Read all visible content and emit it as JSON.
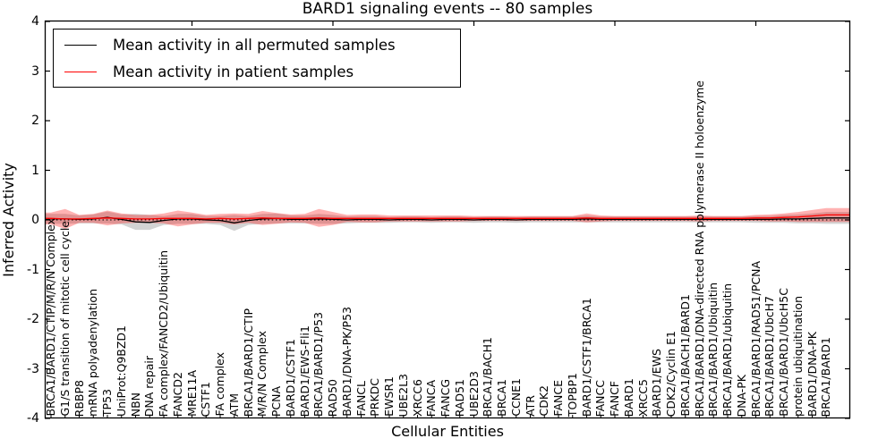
{
  "title": "BARD1 signaling events -- 80 samples",
  "axes": {
    "x_label": "Cellular Entities",
    "y_label": "Inferred Activity",
    "y_ticks": [
      "4",
      "3",
      "2",
      "1",
      "0",
      "-1",
      "-2",
      "-3",
      "-4"
    ],
    "y_tick_values": [
      4,
      3,
      2,
      1,
      0,
      -1,
      -2,
      -3,
      -4
    ]
  },
  "legend": {
    "items": [
      {
        "label": "Mean activity in all permuted samples",
        "color": "#000000"
      },
      {
        "label": "Mean activity in patient samples",
        "color": "#ff0000"
      }
    ]
  },
  "chart_data": {
    "type": "line",
    "title": "BARD1 signaling events -- 80 samples",
    "xlabel": "Cellular Entities",
    "ylabel": "Inferred Activity",
    "ylim": [
      -4,
      4
    ],
    "grid": false,
    "legend_position": "upper left",
    "zero_reference_line": {
      "y": 0,
      "style": "dotted",
      "color": "#000000"
    },
    "categories": [
      "BRCA1/BARD1/CTIP/M/R/N Complex",
      "G1/S transition of mitotic cell cycle",
      "RBBP8",
      "mRNA polyadenylation",
      "TP53",
      "UniProt:Q9BZD1",
      "NBN",
      "DNA repair",
      "FA complex/FANCD2/Ubiquitin",
      "FANCD2",
      "MRE11A",
      "CSTF1",
      "FA complex",
      "ATM",
      "BRCA1/BARD1/CTIP",
      "M/R/N Complex",
      "PCNA",
      "BARD1/CSTF1",
      "BARD1/EWS-Fli1",
      "BRCA1/BARD1/P53",
      "RAD50",
      "BARD1/DNA-PK/P53",
      "FANCL",
      "PRKDC",
      "EWSR1",
      "UBE2L3",
      "XRCC6",
      "FANCA",
      "FANCG",
      "RAD51",
      "UBE2D3",
      "BRCA1/BACH1",
      "BRCA1",
      "CCNE1",
      "ATR",
      "CDK2",
      "FANCE",
      "TOPBP1",
      "BARD1/CSTF1/BRCA1",
      "FANCC",
      "FANCF",
      "BARD1",
      "XRCC5",
      "BARD1/EWS",
      "CDK2/Cyclin E1",
      "BRCA1/BACH1/BARD1",
      "BRCA1/BARD1/DNA-directed RNA polymerase II holoenzyme",
      "BRCA1/BARD1/Ubiquitin",
      "BRCA1/BARD1/ubiquitin",
      "DNA-PK",
      "BRCA1/BARD1/RAD51/PCNA",
      "BRCA1/BARD1/UbcH7",
      "BRCA1/BARD1/UbcH5C",
      "protein ubiquitination",
      "BARD1/DNA-PK",
      "BRCA1/BARD1"
    ],
    "series": [
      {
        "name": "Mean activity in all permuted samples",
        "color": "#000000",
        "band_color": "rgba(110,110,110,0.30)",
        "values": [
          0.02,
          0.02,
          0.01,
          0.02,
          0.05,
          0.01,
          -0.04,
          -0.05,
          -0.01,
          0.02,
          0.02,
          0.0,
          -0.01,
          -0.06,
          -0.01,
          0.02,
          0.03,
          0.01,
          0.01,
          0.02,
          0.01,
          0.0,
          0.01,
          0.01,
          0.0,
          0.01,
          0.01,
          0.0,
          0.01,
          0.01,
          0.0,
          0.01,
          0.01,
          0.0,
          0.01,
          0.01,
          0.01,
          0.01,
          0.02,
          0.01,
          0.01,
          0.01,
          0.01,
          0.01,
          0.01,
          0.01,
          0.01,
          0.01,
          0.01,
          0.01,
          0.01,
          0.01,
          0.02,
          0.02,
          0.03,
          0.04
        ],
        "band_halfwidth": [
          0.1,
          0.1,
          0.08,
          0.09,
          0.12,
          0.1,
          0.16,
          0.15,
          0.09,
          0.1,
          0.1,
          0.08,
          0.09,
          0.16,
          0.09,
          0.1,
          0.1,
          0.08,
          0.08,
          0.1,
          0.09,
          0.07,
          0.07,
          0.07,
          0.06,
          0.06,
          0.06,
          0.06,
          0.06,
          0.06,
          0.06,
          0.06,
          0.06,
          0.06,
          0.06,
          0.06,
          0.06,
          0.06,
          0.07,
          0.06,
          0.06,
          0.06,
          0.06,
          0.06,
          0.06,
          0.06,
          0.06,
          0.06,
          0.06,
          0.06,
          0.07,
          0.07,
          0.08,
          0.09,
          0.1,
          0.12
        ]
      },
      {
        "name": "Mean activity in patient samples",
        "color": "#ff0000",
        "band_color": "rgba(255,0,0,0.30)",
        "values": [
          0.03,
          0.02,
          0.02,
          0.03,
          0.04,
          0.03,
          0.02,
          0.02,
          0.03,
          0.03,
          0.03,
          0.02,
          0.03,
          0.02,
          0.03,
          0.04,
          0.03,
          0.03,
          0.03,
          0.04,
          0.03,
          0.03,
          0.03,
          0.03,
          0.03,
          0.03,
          0.03,
          0.03,
          0.03,
          0.03,
          0.03,
          0.03,
          0.03,
          0.03,
          0.03,
          0.03,
          0.03,
          0.03,
          0.04,
          0.03,
          0.03,
          0.03,
          0.03,
          0.03,
          0.03,
          0.03,
          0.03,
          0.03,
          0.03,
          0.03,
          0.04,
          0.04,
          0.05,
          0.06,
          0.08,
          0.1
        ],
        "band_halfwidth": [
          0.12,
          0.2,
          0.08,
          0.09,
          0.15,
          0.1,
          0.08,
          0.08,
          0.1,
          0.16,
          0.12,
          0.08,
          0.09,
          0.11,
          0.09,
          0.14,
          0.11,
          0.08,
          0.09,
          0.18,
          0.13,
          0.07,
          0.08,
          0.08,
          0.06,
          0.06,
          0.06,
          0.06,
          0.06,
          0.06,
          0.05,
          0.05,
          0.05,
          0.05,
          0.05,
          0.05,
          0.05,
          0.05,
          0.09,
          0.06,
          0.05,
          0.05,
          0.05,
          0.05,
          0.05,
          0.05,
          0.06,
          0.05,
          0.05,
          0.05,
          0.06,
          0.07,
          0.08,
          0.1,
          0.12,
          0.14
        ]
      }
    ]
  }
}
